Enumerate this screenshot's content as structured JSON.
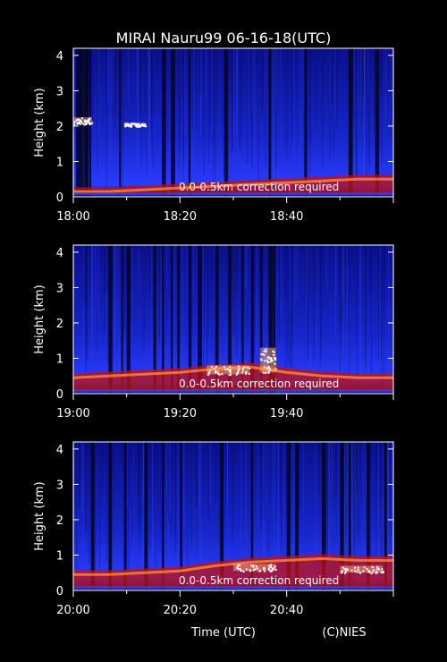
{
  "title": "MIRAI Nauru99 06-16-18(UTC)",
  "xlabel": "Time (UTC)",
  "credit": "(C)NIES",
  "colors": {
    "background": "#000000",
    "low": "#0a0f8a",
    "mid": "#2a3cff",
    "high": "#c01010",
    "peak": "#ffffff"
  },
  "chart_data": [
    {
      "type": "heatmap",
      "ylabel": "Height (km)",
      "yticks": [
        0,
        1,
        2,
        3,
        4
      ],
      "ylim": [
        0,
        4.2
      ],
      "xlim": [
        0,
        60
      ],
      "xtick_minutes": [
        0,
        20,
        40
      ],
      "xtick_labels": [
        "18:00",
        "18:20",
        "18:40"
      ],
      "annotation": "0.0-0.5km correction required",
      "cloud_layers": [
        {
          "x": [
            0,
            3.5
          ],
          "height": [
            2.05,
            2.25
          ]
        },
        {
          "x": [
            9.5,
            13.5
          ],
          "height": [
            2.0,
            2.1
          ]
        }
      ],
      "boundary_layer_top_km": [
        0.15,
        0.15,
        0.2,
        0.25,
        0.3,
        0.35,
        0.4,
        0.45,
        0.5,
        0.5
      ],
      "dark_columns_minutes": [
        0.5,
        1,
        1.5,
        2,
        2.5,
        3,
        8.6,
        16.6,
        18.3,
        21.6,
        28.3,
        36.6,
        43.3,
        51.6,
        56.6
      ]
    },
    {
      "type": "heatmap",
      "ylabel": "Height (km)",
      "yticks": [
        0,
        1,
        2,
        3,
        4
      ],
      "ylim": [
        0,
        4.2
      ],
      "xlim": [
        0,
        60
      ],
      "xtick_minutes": [
        0,
        20,
        40
      ],
      "xtick_labels": [
        "19:00",
        "19:20",
        "19:40"
      ],
      "annotation": "0.0-0.5km correction required",
      "cloud_layers": [
        {
          "x": [
            25,
            33
          ],
          "height": [
            0.55,
            0.8
          ]
        },
        {
          "x": [
            35,
            38
          ],
          "height": [
            0.6,
            1.3
          ]
        }
      ],
      "boundary_layer_top_km": [
        0.45,
        0.5,
        0.55,
        0.6,
        0.7,
        0.75,
        0.6,
        0.5,
        0.45,
        0.45
      ],
      "dark_columns_minutes": [
        6.6,
        9,
        10,
        15,
        16.6,
        18.3,
        19.5,
        21.6,
        23.3,
        26.6,
        29,
        31.6,
        33.3,
        35,
        36.6,
        37.5
      ]
    },
    {
      "type": "heatmap",
      "ylabel": "Height (km)",
      "yticks": [
        0,
        1,
        2,
        3,
        4
      ],
      "ylim": [
        0,
        4.2
      ],
      "xlim": [
        0,
        60
      ],
      "xtick_minutes": [
        0,
        20,
        40
      ],
      "xtick_labels": [
        "20:00",
        "20:20",
        "20:40"
      ],
      "annotation": "0.0-0.5km correction required",
      "cloud_layers": [
        {
          "x": [
            30,
            38
          ],
          "height": [
            0.55,
            0.75
          ]
        },
        {
          "x": [
            50,
            58
          ],
          "height": [
            0.5,
            0.7
          ]
        }
      ],
      "boundary_layer_top_km": [
        0.45,
        0.45,
        0.5,
        0.55,
        0.7,
        0.8,
        0.85,
        0.9,
        0.85,
        0.85
      ],
      "dark_columns_minutes": [
        3.3,
        6.6,
        9.5,
        13.3,
        16.6,
        20,
        27.5,
        33.3,
        40,
        41.6,
        46.6,
        50,
        51.6,
        55,
        58.3
      ]
    }
  ]
}
